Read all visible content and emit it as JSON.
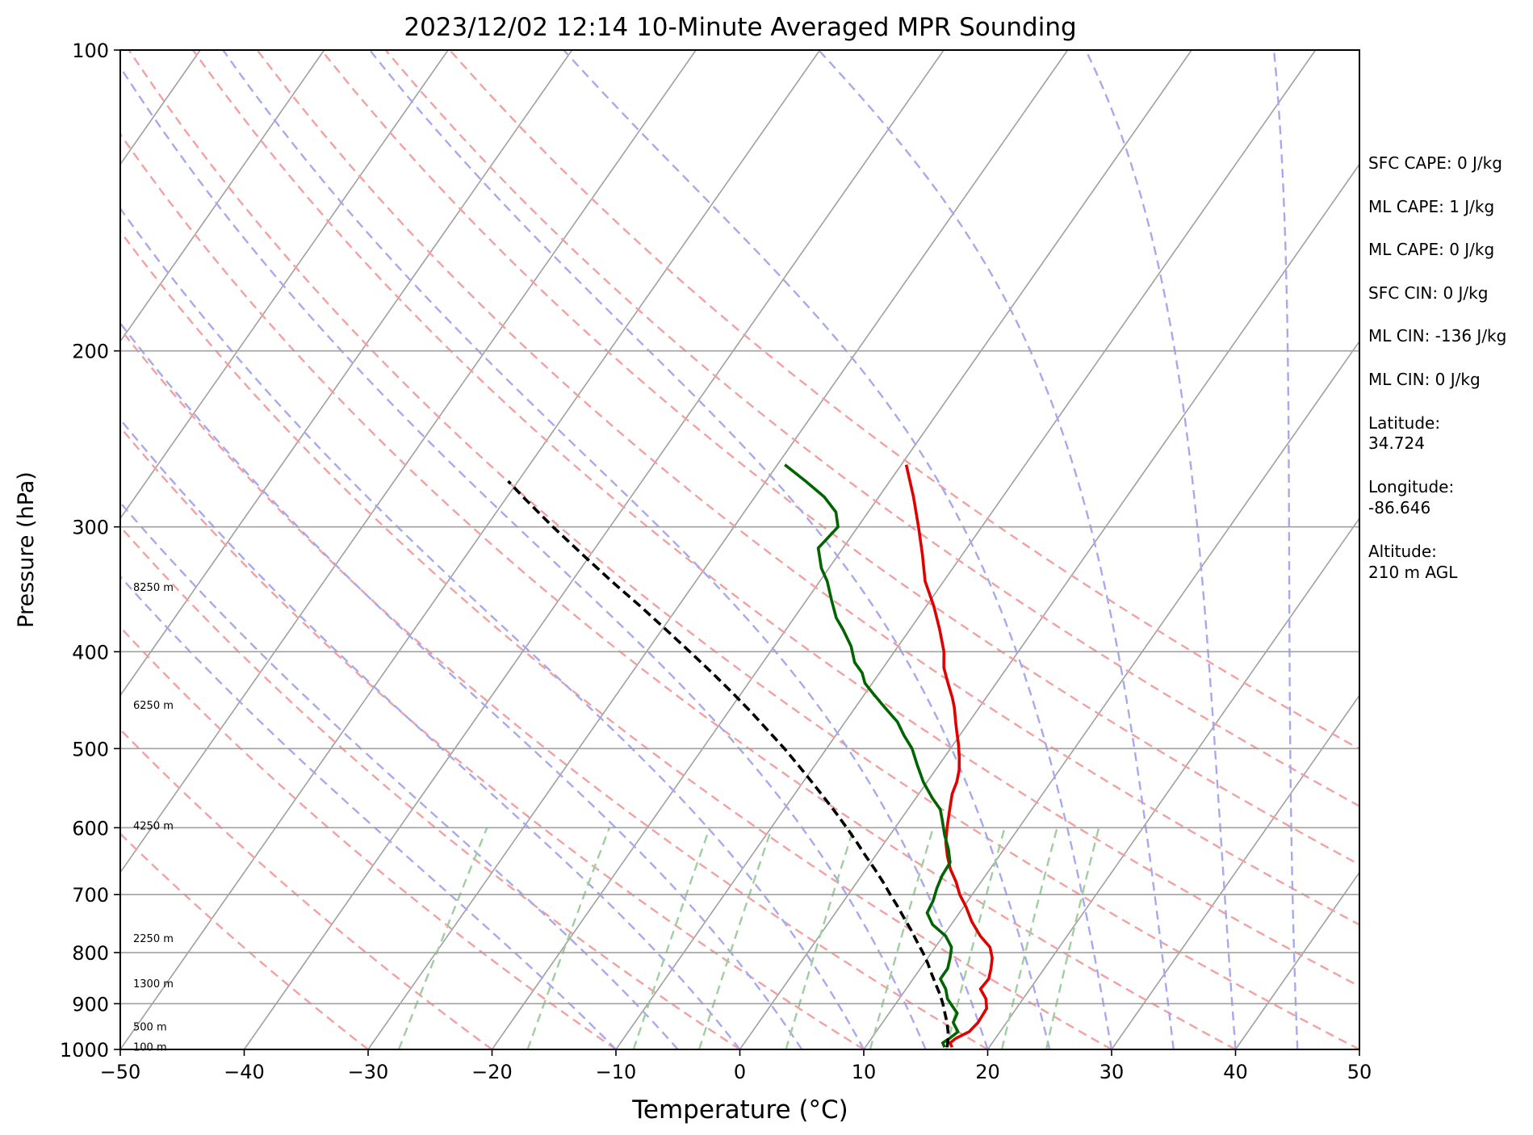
{
  "chart_data": {
    "type": "line",
    "title": "2023/12/02 12:14 10-Minute Averaged MPR Sounding",
    "xlabel": "Temperature (°C)",
    "ylabel": "Pressure (hPa)",
    "xlim": [
      -50,
      50
    ],
    "ylim": [
      1000,
      100
    ],
    "y_scale": "log",
    "grid": true,
    "x_ticks": [
      -50,
      -40,
      -30,
      -20,
      -10,
      0,
      10,
      20,
      30,
      40,
      50
    ],
    "x_tick_labels": [
      "−50",
      "−40",
      "−30",
      "−20",
      "−10",
      "0",
      "10",
      "20",
      "30",
      "40",
      "50"
    ],
    "y_ticks": [
      1000,
      900,
      800,
      700,
      600,
      500,
      400,
      300,
      200,
      100
    ],
    "y_tick_labels": [
      "1000",
      "900",
      "800",
      "700",
      "600",
      "500",
      "400",
      "300",
      "200",
      "100"
    ],
    "height_labels": [
      {
        "text": "100 m",
        "pressure": 995
      },
      {
        "text": "500 m",
        "pressure": 950
      },
      {
        "text": "1300 m",
        "pressure": 860
      },
      {
        "text": "2250 m",
        "pressure": 775
      },
      {
        "text": "4250 m",
        "pressure": 598
      },
      {
        "text": "6250 m",
        "pressure": 453
      },
      {
        "text": "8250 m",
        "pressure": 345
      }
    ],
    "series": [
      {
        "color": "#e00000",
        "dash": "solid",
        "points": [
          [
            17.0,
            995
          ],
          [
            16.6,
            985
          ],
          [
            16.8,
            975
          ],
          [
            17.5,
            960
          ],
          [
            17.7,
            940
          ],
          [
            17.6,
            910
          ],
          [
            17.0,
            890
          ],
          [
            16.0,
            870
          ],
          [
            16.1,
            850
          ],
          [
            15.7,
            830
          ],
          [
            15.2,
            810
          ],
          [
            14.4,
            790
          ],
          [
            13.0,
            770
          ],
          [
            11.5,
            745
          ],
          [
            10.2,
            720
          ],
          [
            9.0,
            700
          ],
          [
            8.0,
            680
          ],
          [
            6.8,
            660
          ],
          [
            5.8,
            640
          ],
          [
            4.9,
            620
          ],
          [
            4.2,
            600
          ],
          [
            3.7,
            585
          ],
          [
            3.2,
            570
          ],
          [
            2.7,
            555
          ],
          [
            2.4,
            540
          ],
          [
            1.9,
            525
          ],
          [
            1.2,
            510
          ],
          [
            0.4,
            495
          ],
          [
            -0.5,
            480
          ],
          [
            -1.1,
            470
          ],
          [
            -2.0,
            455
          ],
          [
            -2.7,
            445
          ],
          [
            -3.9,
            430
          ],
          [
            -5.1,
            415
          ],
          [
            -6.0,
            400
          ],
          [
            -7.6,
            380
          ],
          [
            -9.4,
            360
          ],
          [
            -11.5,
            340
          ],
          [
            -13.2,
            320
          ],
          [
            -15.1,
            300
          ],
          [
            -17.2,
            280
          ],
          [
            -19.6,
            260
          ]
        ]
      },
      {
        "color": "#006400",
        "dash": "solid",
        "points": [
          [
            16.4,
            995
          ],
          [
            16.0,
            985
          ],
          [
            16.3,
            975
          ],
          [
            16.6,
            960
          ],
          [
            15.7,
            940
          ],
          [
            15.5,
            920
          ],
          [
            14.7,
            905
          ],
          [
            13.9,
            890
          ],
          [
            13.2,
            870
          ],
          [
            12.2,
            850
          ],
          [
            12.2,
            830
          ],
          [
            11.8,
            810
          ],
          [
            11.3,
            790
          ],
          [
            10.2,
            770
          ],
          [
            8.5,
            750
          ],
          [
            7.4,
            730
          ],
          [
            7.2,
            710
          ],
          [
            6.8,
            690
          ],
          [
            6.5,
            670
          ],
          [
            6.4,
            650
          ],
          [
            5.5,
            630
          ],
          [
            4.4,
            610
          ],
          [
            3.4,
            590
          ],
          [
            2.6,
            575
          ],
          [
            1.3,
            560
          ],
          [
            -0.3,
            540
          ],
          [
            -1.7,
            520
          ],
          [
            -3.1,
            500
          ],
          [
            -4.5,
            485
          ],
          [
            -5.8,
            470
          ],
          [
            -7.6,
            455
          ],
          [
            -9.4,
            440
          ],
          [
            -10.6,
            430
          ],
          [
            -11.4,
            420
          ],
          [
            -12.6,
            410
          ],
          [
            -13.8,
            395
          ],
          [
            -15.4,
            380
          ],
          [
            -16.6,
            370
          ],
          [
            -18.0,
            355
          ],
          [
            -19.4,
            340
          ],
          [
            -20.6,
            330
          ],
          [
            -22.0,
            315
          ],
          [
            -21.6,
            300
          ],
          [
            -22.6,
            290
          ],
          [
            -24.4,
            280
          ],
          [
            -26.8,
            270
          ],
          [
            -29.4,
            260
          ]
        ]
      },
      {
        "color": "#000000",
        "dash": "dashed",
        "points": [
          [
            16.6,
            995
          ],
          [
            16.3,
            980
          ],
          [
            15.8,
            960
          ],
          [
            15.2,
            940
          ],
          [
            14.5,
            920
          ],
          [
            13.8,
            900
          ],
          [
            13.0,
            880
          ],
          [
            12.1,
            860
          ],
          [
            11.2,
            840
          ],
          [
            10.3,
            820
          ],
          [
            9.3,
            800
          ],
          [
            8.2,
            780
          ],
          [
            7.1,
            760
          ],
          [
            5.9,
            740
          ],
          [
            4.7,
            720
          ],
          [
            3.4,
            700
          ],
          [
            2.1,
            680
          ],
          [
            0.7,
            660
          ],
          [
            -0.8,
            640
          ],
          [
            -2.3,
            620
          ],
          [
            -3.9,
            600
          ],
          [
            -5.6,
            580
          ],
          [
            -7.4,
            560
          ],
          [
            -9.3,
            540
          ],
          [
            -11.3,
            520
          ],
          [
            -13.4,
            500
          ],
          [
            -15.7,
            480
          ],
          [
            -18.1,
            460
          ],
          [
            -20.7,
            440
          ],
          [
            -23.5,
            420
          ],
          [
            -26.5,
            400
          ],
          [
            -29.7,
            380
          ],
          [
            -33.1,
            360
          ],
          [
            -36.8,
            340
          ],
          [
            -40.6,
            320
          ],
          [
            -44.6,
            300
          ],
          [
            -48.7,
            280
          ],
          [
            -50.8,
            270
          ]
        ]
      }
    ]
  },
  "info": {
    "sfc_cape": "SFC CAPE: 0 J/kg",
    "ml_cape_1": "ML CAPE: 1 J/kg",
    "ml_cape_2": "ML CAPE: 0 J/kg",
    "sfc_cin": "SFC CIN: 0 J/kg",
    "ml_cin_1": "ML CIN: -136 J/kg",
    "ml_cin_2": "ML CIN: 0 J/kg",
    "latitude_label": "Latitude:",
    "latitude_value": "34.724",
    "longitude_label": "Longitude:",
    "longitude_value": "-86.646",
    "altitude_label": "Altitude:",
    "altitude_value": "210 m AGL"
  },
  "colors": {
    "temperature": "#e00000",
    "dewpoint": "#006400",
    "parcel": "#000000",
    "isotherm": "#a0a0a0",
    "dry_adiabat": "#f4a0a0",
    "moist_adiabat": "#a8a8f0",
    "mixing_ratio": "#9fce9f"
  }
}
